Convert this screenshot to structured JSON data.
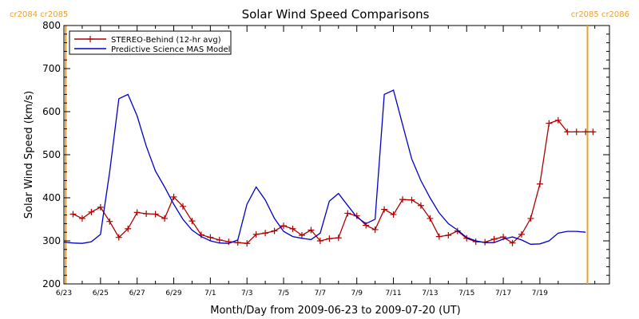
{
  "chart_data": {
    "type": "line",
    "title": "Solar Wind Speed Comparisons",
    "xlabel": "Month/Day from 2009-06-23 to 2009-07-20 (UT)",
    "ylabel": "Solar Wind Speed (km/s)",
    "ylim": [
      200,
      800
    ],
    "yticks": [
      200,
      300,
      400,
      500,
      600,
      700,
      800
    ],
    "xlim": [
      0,
      29.8
    ],
    "xtick_days": [
      0,
      2,
      4,
      6,
      8,
      10,
      12,
      14,
      16,
      18,
      20,
      22,
      24,
      26
    ],
    "xtick_labels": [
      "6/23",
      "6/25",
      "6/27",
      "6/29",
      "7/1",
      "7/3",
      "7/5",
      "7/7",
      "7/9",
      "7/11",
      "7/13",
      "7/15",
      "7/17",
      "7/19"
    ],
    "grid": false,
    "legend": "top-left",
    "carrington_markers": [
      {
        "x": 0.1,
        "labels": [
          "cr2084",
          "cr2085"
        ],
        "side": "left",
        "color": "#e8a030"
      },
      {
        "x": 28.6,
        "labels": [
          "cr2085",
          "cr2086"
        ],
        "side": "right",
        "color": "#e8a030"
      }
    ],
    "series": [
      {
        "name": "STEREO-Behind (12-hr avg)",
        "color": "#b00000",
        "marker": "plus",
        "x": [
          0.5,
          1.0,
          1.5,
          2.0,
          2.5,
          3.0,
          3.5,
          4.0,
          4.5,
          5.0,
          5.5,
          6.0,
          6.5,
          7.0,
          7.5,
          8.0,
          8.5,
          9.0,
          9.5,
          10.0,
          10.5,
          11.0,
          11.5,
          12.0,
          12.5,
          13.0,
          13.5,
          14.0,
          14.5,
          15.0,
          15.5,
          16.0,
          16.5,
          17.0,
          17.5,
          18.0,
          18.5,
          19.0,
          19.5,
          20.0,
          20.5,
          21.0,
          21.5,
          22.0,
          22.5,
          23.0,
          23.5,
          24.0,
          24.5,
          25.0,
          25.5,
          26.0,
          26.5,
          27.0,
          27.5,
          28.0,
          28.5,
          28.9
        ],
        "y": [
          362,
          352,
          367,
          378,
          345,
          308,
          328,
          366,
          363,
          362,
          352,
          402,
          380,
          346,
          314,
          308,
          302,
          298,
          296,
          294,
          315,
          318,
          323,
          335,
          328,
          313,
          325,
          300,
          305,
          307,
          364,
          358,
          336,
          326,
          373,
          361,
          396,
          395,
          382,
          352,
          310,
          313,
          323,
          306,
          298,
          297,
          304,
          309,
          295,
          315,
          352,
          432,
          573,
          580,
          553,
          553,
          553,
          553
        ]
      },
      {
        "name": "Predictive Science MAS Model",
        "color": "#0000c8",
        "x": [
          0,
          0.5,
          1.0,
          1.5,
          2.0,
          2.5,
          3.0,
          3.5,
          4.0,
          4.5,
          5.0,
          5.5,
          6.0,
          6.5,
          7.0,
          7.5,
          8.0,
          8.5,
          9.0,
          9.5,
          10.0,
          10.5,
          11.0,
          11.5,
          12.0,
          12.5,
          13.0,
          13.5,
          14.0,
          14.5,
          15.0,
          15.5,
          16.0,
          16.5,
          17.0,
          17.5,
          18.0,
          18.5,
          19.0,
          19.5,
          20.0,
          20.5,
          21.0,
          21.5,
          22.0,
          22.5,
          23.0,
          23.5,
          24.0,
          24.5,
          25.0,
          25.5,
          26.0,
          26.5,
          27.0,
          27.5,
          28.0,
          28.5
        ],
        "y": [
          297,
          295,
          294,
          298,
          315,
          460,
          630,
          640,
          590,
          520,
          462,
          425,
          385,
          350,
          325,
          310,
          300,
          295,
          294,
          302,
          385,
          425,
          395,
          352,
          322,
          310,
          306,
          303,
          318,
          392,
          410,
          382,
          355,
          340,
          350,
          640,
          650,
          570,
          490,
          440,
          400,
          365,
          340,
          325,
          308,
          300,
          296,
          296,
          304,
          309,
          302,
          292,
          293,
          300,
          318,
          322,
          322,
          320
        ]
      }
    ]
  }
}
